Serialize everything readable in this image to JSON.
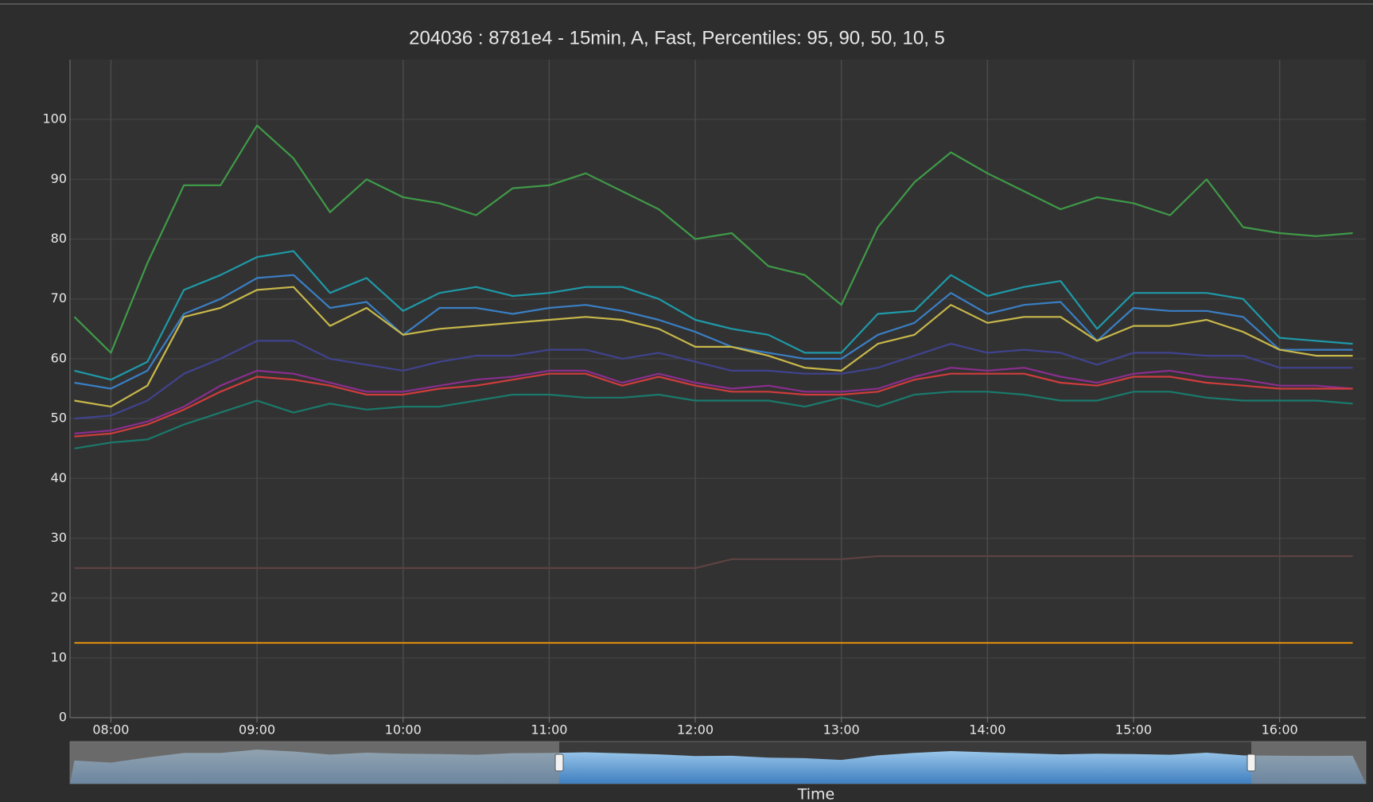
{
  "chart_data": {
    "type": "line",
    "title": "204036 : 8781e4 - 15min, A, Fast, Percentiles: 95, 90, 50, 10, 5",
    "x_label": "Time",
    "x": [
      7.75,
      8,
      8.25,
      8.5,
      8.75,
      9,
      9.25,
      9.5,
      9.75,
      10,
      10.25,
      10.5,
      10.75,
      11,
      11.25,
      11.5,
      11.75,
      12,
      12.25,
      12.5,
      12.75,
      13,
      13.25,
      13.5,
      13.75,
      14,
      14.25,
      14.5,
      14.75,
      15,
      15.25,
      15.5,
      15.75,
      16,
      16.25,
      16.5
    ],
    "xlim": [
      7.72,
      16.59
    ],
    "xticks": [
      {
        "value": 8,
        "label": "08:00"
      },
      {
        "value": 9,
        "label": "09:00"
      },
      {
        "value": 10,
        "label": "10:00"
      },
      {
        "value": 11,
        "label": "11:00"
      },
      {
        "value": 12,
        "label": "12:00"
      },
      {
        "value": 13,
        "label": "13:00"
      },
      {
        "value": 14,
        "label": "14:00"
      },
      {
        "value": 15,
        "label": "15:00"
      },
      {
        "value": 16,
        "label": "16:00"
      }
    ],
    "ylim": [
      0,
      110
    ],
    "yticks": [
      0,
      10,
      20,
      30,
      40,
      50,
      60,
      70,
      80,
      90,
      100
    ],
    "grid": true,
    "series": [
      {
        "color": "#3f9a48",
        "values": [
          67,
          61,
          76,
          89,
          89,
          99,
          93.5,
          84.5,
          90,
          87,
          86,
          84,
          88.5,
          89,
          91,
          88,
          85,
          80,
          81,
          75.5,
          74,
          69,
          82,
          89.5,
          94.5,
          91,
          88,
          85,
          87,
          86,
          84,
          90,
          82,
          81,
          80.5,
          81
        ]
      },
      {
        "color": "#1e9aa8",
        "values": [
          58,
          56.5,
          59.5,
          71.5,
          74,
          77,
          78,
          71,
          73.5,
          68,
          71,
          72,
          70.5,
          71,
          72,
          72,
          70,
          66.5,
          65,
          64,
          61,
          61,
          67.5,
          68,
          74,
          70.5,
          72,
          73,
          65,
          71,
          71,
          71,
          70,
          63.5,
          63,
          62.5
        ]
      },
      {
        "color": "#3a7fc4",
        "values": [
          56,
          55,
          58,
          67.5,
          70,
          73.5,
          74,
          68.5,
          69.5,
          64,
          68.5,
          68.5,
          67.5,
          68.5,
          69,
          68,
          66.5,
          64.5,
          62,
          61,
          60,
          60,
          64,
          66,
          71,
          67.5,
          69,
          69.5,
          63,
          68.5,
          68,
          68,
          67,
          61.5,
          61.5,
          61.5
        ]
      },
      {
        "color": "#c8b84a",
        "values": [
          53,
          52,
          55.5,
          67,
          68.5,
          71.5,
          72,
          65.5,
          68.5,
          64,
          65,
          65.5,
          66,
          66.5,
          67,
          66.5,
          65,
          62,
          62,
          60.5,
          58.5,
          58,
          62.5,
          64,
          69,
          66,
          67,
          67,
          63,
          65.5,
          65.5,
          66.5,
          64.5,
          61.5,
          60.5,
          60.5
        ]
      },
      {
        "color": "#40438f",
        "values": [
          50,
          50.5,
          53,
          57.5,
          60,
          63,
          63,
          60,
          59,
          58,
          59.5,
          60.5,
          60.5,
          61.5,
          61.5,
          60,
          61,
          59.5,
          58,
          58,
          57.5,
          57.5,
          58.5,
          60.5,
          62.5,
          61,
          61.5,
          61,
          59,
          61,
          61,
          60.5,
          60.5,
          58.5,
          58.5,
          58.5
        ]
      },
      {
        "color": "#8b2e8f",
        "values": [
          47.5,
          48,
          49.5,
          52,
          55.5,
          58,
          57.5,
          56,
          54.5,
          54.5,
          55.5,
          56.5,
          57,
          58,
          58,
          56,
          57.5,
          56,
          55,
          55.5,
          54.5,
          54.5,
          55,
          57,
          58.5,
          58,
          58.5,
          57,
          56,
          57.5,
          58,
          57,
          56.5,
          55.5,
          55.5,
          55
        ]
      },
      {
        "color": "#d03c3c",
        "values": [
          47,
          47.5,
          49,
          51.5,
          54.5,
          57,
          56.5,
          55.5,
          54,
          54,
          55,
          55.5,
          56.5,
          57.5,
          57.5,
          55.5,
          57,
          55.5,
          54.5,
          54.5,
          54,
          54,
          54.5,
          56.5,
          57.5,
          57.5,
          57.5,
          56,
          55.5,
          57,
          57,
          56,
          55.5,
          55,
          55,
          55
        ]
      },
      {
        "color": "#1a7a6c",
        "values": [
          45,
          46,
          46.5,
          49,
          51,
          53,
          51,
          52.5,
          51.5,
          52,
          52,
          53,
          54,
          54,
          53.5,
          53.5,
          54,
          53,
          53,
          53,
          52,
          53.5,
          52,
          54,
          54.5,
          54.5,
          54,
          53,
          53,
          54.5,
          54.5,
          53.5,
          53,
          53,
          53,
          52.5
        ]
      },
      {
        "color": "#5e4242",
        "values": [
          25,
          25,
          25,
          25,
          25,
          25,
          25,
          25,
          25,
          25,
          25,
          25,
          25,
          25,
          25,
          25,
          25,
          25,
          26.5,
          26.5,
          26.5,
          26.5,
          27,
          27,
          27,
          27,
          27,
          27,
          27,
          27,
          27,
          27,
          27,
          27,
          27,
          27
        ]
      },
      {
        "color": "#d88a10",
        "values": [
          12.5,
          12.5,
          12.5,
          12.5,
          12.5,
          12.5,
          12.5,
          12.5,
          12.5,
          12.5,
          12.5,
          12.5,
          12.5,
          12.5,
          12.5,
          12.5,
          12.5,
          12.5,
          12.5,
          12.5,
          12.5,
          12.5,
          12.5,
          12.5,
          12.5,
          12.5,
          12.5,
          12.5,
          12.5,
          12.5,
          12.5,
          12.5,
          12.5,
          12.5,
          12.5,
          12.5
        ]
      }
    ]
  }
}
